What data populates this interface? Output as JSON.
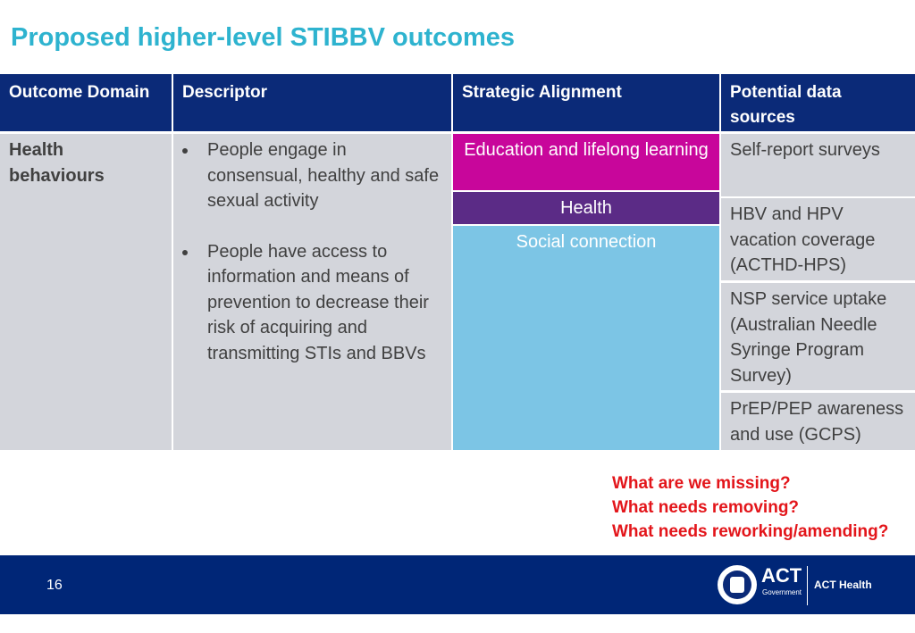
{
  "title": "Proposed higher-level STIBBV outcomes",
  "table": {
    "headers": [
      "Outcome Domain",
      "Descriptor",
      "Strategic Alignment",
      "Potential data sources"
    ],
    "domain": "Health behaviours",
    "descriptors": [
      "People engage in consensual, healthy and safe sexual activity",
      "People have access to information and means of prevention to decrease their risk of acquiring and transmitting STIs and BBVs"
    ],
    "alignment": [
      {
        "label": "Education and lifelong learning",
        "color": "#c8069b"
      },
      {
        "label": "Health",
        "color": "#5b2b86"
      },
      {
        "label": "Social connection",
        "color": "#7cc5e5"
      }
    ],
    "sources": [
      "Self-report surveys",
      "HBV and HPV vacation coverage (ACTHD-HPS)",
      "NSP service uptake (Australian Needle Syringe Program Survey)",
      "PrEP/PEP awareness and use (GCPS)"
    ]
  },
  "questions": [
    "What are we missing?",
    "What needs removing?",
    "What needs reworking/amending?"
  ],
  "footer": {
    "page": "16",
    "logo_text": "ACT",
    "logo_sub": "Government",
    "org": "ACT Health"
  }
}
